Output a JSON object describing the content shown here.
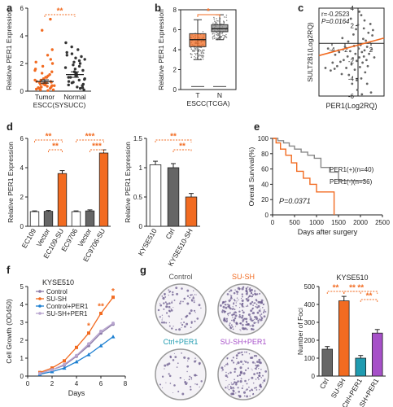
{
  "panels": {
    "a": "a",
    "b": "b",
    "c": "c",
    "d": "d",
    "e": "e",
    "f": "f",
    "g": "g"
  },
  "chart_data": [
    {
      "id": "a",
      "type": "scatter",
      "ylabel": "Relative PER1 Expression",
      "xlabel": "ESCC(SYSUCC)",
      "categories": [
        "Tumor",
        "Normal"
      ],
      "ylim": [
        0,
        6
      ],
      "yticks": [
        0,
        2,
        4,
        6
      ],
      "means": [
        0.7,
        1.2
      ],
      "sem": [
        0.12,
        0.2
      ],
      "significance": "**",
      "series": [
        {
          "name": "Tumor",
          "color": "#f26b21",
          "values": [
            0.05,
            0.1,
            0.1,
            0.15,
            0.2,
            0.2,
            0.25,
            0.3,
            0.3,
            0.3,
            0.35,
            0.4,
            0.4,
            0.45,
            0.5,
            0.5,
            0.55,
            0.6,
            0.6,
            0.65,
            0.7,
            0.7,
            0.8,
            0.8,
            0.9,
            1.0,
            1.0,
            1.1,
            1.2,
            1.3,
            1.4,
            1.5,
            1.6,
            1.8,
            2.0,
            2.1,
            2.3,
            2.6,
            3.0,
            4.4,
            5.2
          ]
        },
        {
          "name": "Normal",
          "color": "#333333",
          "values": [
            0.1,
            0.2,
            0.25,
            0.3,
            0.4,
            0.45,
            0.5,
            0.6,
            0.65,
            0.7,
            0.8,
            0.85,
            0.9,
            1.0,
            1.0,
            1.1,
            1.2,
            1.3,
            1.4,
            1.5,
            1.6,
            1.7,
            1.8,
            1.9,
            2.0,
            2.1,
            2.2,
            2.3,
            2.4,
            2.5,
            2.6,
            2.7,
            2.8,
            3.0,
            3.2,
            3.5
          ]
        }
      ]
    },
    {
      "id": "b",
      "type": "box",
      "ylabel": "Relative PER1 Expression",
      "xlabel": "ESCC(TCGA)",
      "categories": [
        "T",
        "N"
      ],
      "ylim": [
        0,
        8
      ],
      "yticks": [
        0,
        2,
        4,
        6,
        8
      ],
      "significance": "*",
      "boxes": [
        {
          "name": "T",
          "color": "#f26b21",
          "whisker_low": 3.0,
          "q1": 4.3,
          "median": 5.0,
          "q3": 5.6,
          "whisker_high": 7.0,
          "low_outlier": 0.3
        },
        {
          "name": "N",
          "color": "#888888",
          "whisker_low": 5.0,
          "q1": 5.8,
          "median": 6.1,
          "q3": 6.5,
          "whisker_high": 7.5,
          "low_outlier": 0.3
        }
      ]
    },
    {
      "id": "c",
      "type": "scatter",
      "annotation_r": "r=-0.2523",
      "annotation_p": "P=0.0164",
      "xlabel": "PER1(Log2RQ)",
      "ylabel": "SULT2B1(Log2RQ)",
      "xlim": [
        -6,
        4
      ],
      "ylim": [
        -6,
        4
      ],
      "xticks": [
        -4,
        -2,
        2
      ],
      "yticks": [
        -6,
        -4,
        -2,
        2,
        4
      ],
      "fit": {
        "x": [
          -6,
          4
        ],
        "y": [
          -1.4,
          0.6
        ],
        "color": "#f26b21"
      },
      "points": [
        [
          -5,
          -2.8
        ],
        [
          -4.6,
          -0.6
        ],
        [
          -4.2,
          -3.1
        ],
        [
          -3.9,
          -2.2
        ],
        [
          -3.5,
          -1.3
        ],
        [
          -3.2,
          -2.6
        ],
        [
          -3.0,
          -0.8
        ],
        [
          -2.7,
          -2.1
        ],
        [
          -2.5,
          -3.5
        ],
        [
          -2.2,
          -1.9
        ],
        [
          -2.0,
          -0.4
        ],
        [
          -1.8,
          -2.8
        ],
        [
          -1.6,
          -1.5
        ],
        [
          -1.4,
          -3.6
        ],
        [
          -1.2,
          -0.9
        ],
        [
          -1.0,
          -2.4
        ],
        [
          -0.9,
          -4.6
        ],
        [
          -0.8,
          -1.7
        ],
        [
          -0.6,
          -0.3
        ],
        [
          -0.5,
          -3.0
        ],
        [
          -0.4,
          -1.2
        ],
        [
          -0.2,
          -2.0
        ],
        [
          -0.1,
          -5.3
        ],
        [
          0.1,
          -0.6
        ],
        [
          0.2,
          -1.6
        ],
        [
          0.3,
          -2.7
        ],
        [
          0.4,
          -0.2
        ],
        [
          0.5,
          -4.0
        ],
        [
          0.6,
          -1.0
        ],
        [
          0.7,
          -2.2
        ],
        [
          0.8,
          0.5
        ],
        [
          0.9,
          -1.5
        ],
        [
          1.0,
          -0.8
        ],
        [
          1.1,
          -3.3
        ],
        [
          1.2,
          0.3
        ],
        [
          1.3,
          -1.9
        ],
        [
          1.4,
          -0.4
        ],
        [
          1.5,
          -2.6
        ],
        [
          1.6,
          1.2
        ],
        [
          1.7,
          -1.2
        ],
        [
          1.8,
          0.1
        ],
        [
          2.0,
          -5.6
        ],
        [
          2.1,
          -0.7
        ],
        [
          2.3,
          1.5
        ],
        [
          2.5,
          -1.6
        ],
        [
          0.0,
          2.1
        ],
        [
          -0.3,
          1.6
        ],
        [
          0.5,
          3.2
        ],
        [
          1.0,
          2.6
        ],
        [
          -1.1,
          2.8
        ],
        [
          0.2,
          3.6
        ],
        [
          -0.7,
          1.0
        ],
        [
          1.9,
          2.2
        ],
        [
          -2.4,
          0.6
        ],
        [
          -0.2,
          -4.2
        ],
        [
          0.6,
          -5.8
        ],
        [
          -1.5,
          0.2
        ],
        [
          1.4,
          -4.6
        ],
        [
          2.2,
          0.9
        ],
        [
          -2.9,
          -1.0
        ],
        [
          -3.6,
          -2.9
        ],
        [
          0.9,
          1.7
        ]
      ]
    },
    {
      "id": "d1",
      "type": "bar",
      "ylabel": "Relative PER1 Expression",
      "categories": [
        "EC109",
        "Vector",
        "EC109-SU",
        "EC9706",
        "Vector",
        "EC9706-SU"
      ],
      "values": [
        1.0,
        1.02,
        3.6,
        1.0,
        1.05,
        5.0
      ],
      "sem": [
        0.05,
        0.06,
        0.2,
        0.05,
        0.07,
        0.22
      ],
      "colors": [
        "#ffffff",
        "#666666",
        "#f26b21",
        "#ffffff",
        "#666666",
        "#f26b21"
      ],
      "ylim": [
        0,
        6
      ],
      "yticks": [
        0,
        2,
        4,
        6
      ],
      "significance": [
        "**",
        "**",
        "***",
        "***"
      ]
    },
    {
      "id": "d2",
      "type": "bar",
      "ylabel": "Relative PER1 Expression",
      "categories": [
        "KYSE510",
        "Ctrl",
        "KYSE510-SH"
      ],
      "values": [
        1.05,
        1.0,
        0.5
      ],
      "sem": [
        0.06,
        0.07,
        0.06
      ],
      "colors": [
        "#ffffff",
        "#666666",
        "#f26b21"
      ],
      "ylim": [
        0,
        1.5
      ],
      "yticks": [
        0.0,
        0.5,
        1.0,
        1.5
      ],
      "significance": [
        "**",
        "**"
      ]
    },
    {
      "id": "e",
      "type": "line",
      "ylabel": "Overall Survival(%)",
      "xlabel": "Days after surgery",
      "xlim": [
        0,
        2500
      ],
      "ylim": [
        0,
        100
      ],
      "xticks": [
        0,
        500,
        1000,
        1500,
        2000,
        2500
      ],
      "yticks": [
        0,
        20,
        40,
        60,
        80,
        100
      ],
      "pvalue": "P=0.0371",
      "series": [
        {
          "name": "PER1(+)(n=40)",
          "color": "#888888",
          "points": [
            [
              0,
              100
            ],
            [
              120,
              100
            ],
            [
              120,
              97
            ],
            [
              250,
              97
            ],
            [
              250,
              94
            ],
            [
              380,
              94
            ],
            [
              380,
              90
            ],
            [
              500,
              90
            ],
            [
              500,
              86
            ],
            [
              650,
              86
            ],
            [
              650,
              82
            ],
            [
              800,
              82
            ],
            [
              800,
              78
            ],
            [
              950,
              78
            ],
            [
              950,
              74
            ],
            [
              1100,
              74
            ],
            [
              1100,
              62
            ],
            [
              1300,
              62
            ],
            [
              1300,
              56
            ],
            [
              1500,
              56
            ],
            [
              1500,
              45
            ],
            [
              2100,
              45
            ]
          ]
        },
        {
          "name": "PER1(-)(n=36)",
          "color": "#f26b21",
          "points": [
            [
              0,
              100
            ],
            [
              80,
              100
            ],
            [
              80,
              94
            ],
            [
              180,
              94
            ],
            [
              180,
              86
            ],
            [
              300,
              86
            ],
            [
              300,
              78
            ],
            [
              430,
              78
            ],
            [
              430,
              68
            ],
            [
              550,
              68
            ],
            [
              550,
              57
            ],
            [
              700,
              57
            ],
            [
              700,
              48
            ],
            [
              850,
              48
            ],
            [
              850,
              40
            ],
            [
              1000,
              40
            ],
            [
              1000,
              30
            ],
            [
              1400,
              30
            ],
            [
              1400,
              0
            ]
          ]
        }
      ]
    },
    {
      "id": "f",
      "type": "line",
      "title": "KYSE510",
      "ylabel": "Cell Growth (OD450)",
      "xlabel": "Days",
      "xlim": [
        0,
        8
      ],
      "ylim": [
        0,
        5
      ],
      "xticks": [
        0,
        2,
        4,
        6,
        8
      ],
      "yticks": [
        0,
        1,
        2,
        3,
        4,
        5
      ],
      "significance": [
        "*",
        "**",
        "*"
      ],
      "series": [
        {
          "name": "Control",
          "color": "#8c7ba8",
          "x": [
            1,
            2,
            3,
            4,
            5,
            6,
            7
          ],
          "values": [
            0.15,
            0.35,
            0.6,
            1.1,
            1.7,
            2.4,
            2.9
          ]
        },
        {
          "name": "SU-SH",
          "color": "#f26b21",
          "x": [
            1,
            2,
            3,
            4,
            5,
            6,
            7
          ],
          "values": [
            0.2,
            0.45,
            0.85,
            1.6,
            2.4,
            3.5,
            4.4
          ]
        },
        {
          "name": "Control+PER1",
          "color": "#1c7fd1",
          "x": [
            1,
            2,
            3,
            4,
            5,
            6,
            7
          ],
          "values": [
            0.1,
            0.25,
            0.45,
            0.8,
            1.2,
            1.7,
            2.2
          ]
        },
        {
          "name": "SU-SH+PER1",
          "color": "#b8a5cf",
          "x": [
            1,
            2,
            3,
            4,
            5,
            6,
            7
          ],
          "values": [
            0.15,
            0.35,
            0.65,
            1.15,
            1.8,
            2.5,
            2.95
          ]
        }
      ]
    },
    {
      "id": "g",
      "type": "bar",
      "title": "KYSE510",
      "ylabel": "Number of Foci",
      "categories": [
        "Ctrl",
        "SU-SH",
        "Ctrl+PER1",
        "SU-SH+PER1"
      ],
      "values": [
        150,
        420,
        100,
        240
      ],
      "sem": [
        15,
        25,
        15,
        20
      ],
      "colors": [
        "#666666",
        "#f26b21",
        "#1f9bb0",
        "#a650c8"
      ],
      "ylim": [
        0,
        500
      ],
      "yticks": [
        0,
        100,
        200,
        300,
        400,
        500
      ],
      "significance": [
        "**",
        "**",
        "**",
        "**"
      ],
      "well_labels": [
        {
          "text": "Control",
          "color": "#555555"
        },
        {
          "text": "SU-SH",
          "color": "#f26b21"
        },
        {
          "text": "Ctrl+PER1",
          "color": "#1f9bb0"
        },
        {
          "text": "SU-SH+PER1",
          "color": "#a650c8"
        }
      ]
    }
  ]
}
